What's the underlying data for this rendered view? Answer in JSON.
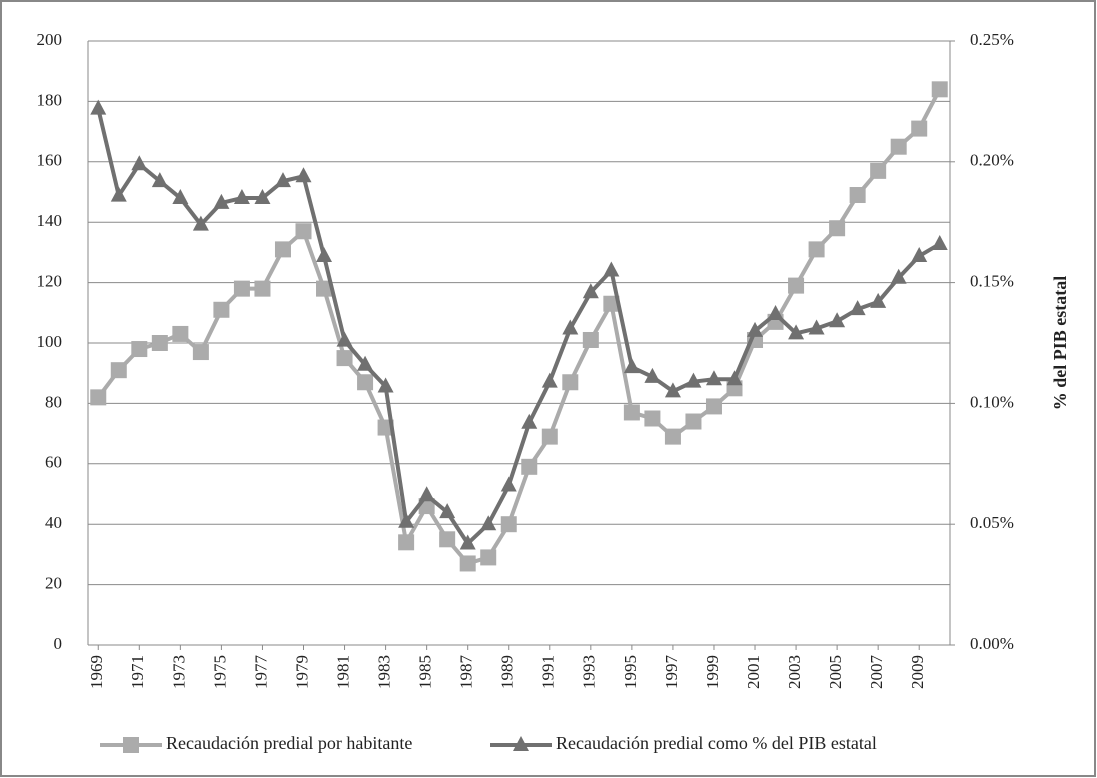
{
  "chart_data": {
    "type": "line",
    "x": [
      1969,
      1970,
      1971,
      1972,
      1973,
      1974,
      1975,
      1976,
      1977,
      1978,
      1979,
      1980,
      1981,
      1982,
      1983,
      1984,
      1985,
      1986,
      1987,
      1988,
      1989,
      1990,
      1991,
      1992,
      1993,
      1994,
      1995,
      1996,
      1997,
      1998,
      1999,
      2000,
      2001,
      2002,
      2003,
      2004,
      2005,
      2006,
      2007,
      2008,
      2009,
      2010
    ],
    "xlim": [
      1968.5,
      2010.5
    ],
    "xticks": [
      1969,
      1971,
      1973,
      1975,
      1977,
      1979,
      1981,
      1983,
      1985,
      1987,
      1989,
      1991,
      1993,
      1995,
      1997,
      1999,
      2001,
      2003,
      2005,
      2007,
      2009
    ],
    "ylim": [
      0,
      200
    ],
    "yticks": [
      0,
      20,
      40,
      60,
      80,
      100,
      120,
      140,
      160,
      180,
      200
    ],
    "y2lim": [
      0,
      0.25
    ],
    "y2ticks": [
      {
        "value": 0,
        "label": "0.00%"
      },
      {
        "value": 0.05,
        "label": "0.05%"
      },
      {
        "value": 0.1,
        "label": "0.10%"
      },
      {
        "value": 0.15,
        "label": "0.15%"
      },
      {
        "value": 0.2,
        "label": "0.20%"
      },
      {
        "value": 0.25,
        "label": "0.25%"
      }
    ],
    "y2label": "% del PIB estatal",
    "grid": true,
    "legend": "bottom",
    "series": [
      {
        "name": "Recaudación predial por habitante",
        "color": "#ababab",
        "marker": "square",
        "values": [
          82,
          91,
          98,
          100,
          103,
          97,
          111,
          118,
          118,
          131,
          137,
          118,
          95,
          87,
          72,
          34,
          46,
          35,
          27,
          29,
          40,
          59,
          69,
          87,
          101,
          113,
          77,
          75,
          69,
          74,
          79,
          85,
          101,
          107,
          119,
          131,
          138,
          149,
          157,
          165,
          171,
          184
        ]
      },
      {
        "name": "Recaudación predial como % del PIB estatal",
        "color": "#707070",
        "marker": "triangle",
        "axis": "y2",
        "values": [
          0.222,
          0.186,
          0.199,
          0.192,
          0.185,
          0.174,
          0.183,
          0.185,
          0.185,
          0.192,
          0.194,
          0.161,
          0.126,
          0.116,
          0.107,
          0.051,
          0.062,
          0.055,
          0.042,
          0.05,
          0.066,
          0.092,
          0.109,
          0.131,
          0.146,
          0.155,
          0.115,
          0.111,
          0.105,
          0.109,
          0.11,
          0.11,
          0.13,
          0.137,
          0.129,
          0.131,
          0.134,
          0.139,
          0.142,
          0.152,
          0.161,
          0.166
        ]
      }
    ]
  }
}
